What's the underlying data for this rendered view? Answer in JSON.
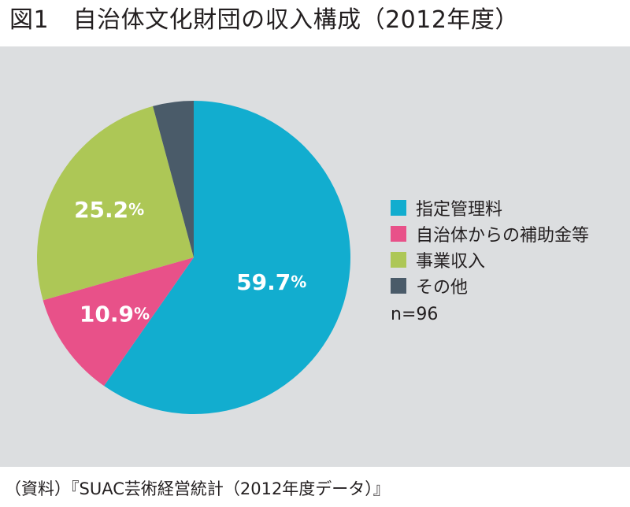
{
  "title": "図1　自治体文化財団の収入構成（2012年度）",
  "source": "（資料）『SUAC芸術経営統計（2012年度データ）』",
  "chart_data": {
    "type": "pie",
    "title": "図1　自治体文化財団の収入構成（2012年度）",
    "categories": [
      "指定管理料",
      "自治体からの補助金等",
      "事業収入",
      "その他"
    ],
    "values": [
      59.7,
      10.9,
      25.2,
      4.2
    ],
    "labels": [
      "59.7",
      "10.9",
      "25.2",
      ""
    ],
    "unit": "%",
    "colors": [
      "#12adcf",
      "#e85189",
      "#adc756",
      "#4a5b69"
    ],
    "start": "12 o'clock",
    "direction": "clockwise",
    "legend": "right",
    "note": "n=96"
  }
}
